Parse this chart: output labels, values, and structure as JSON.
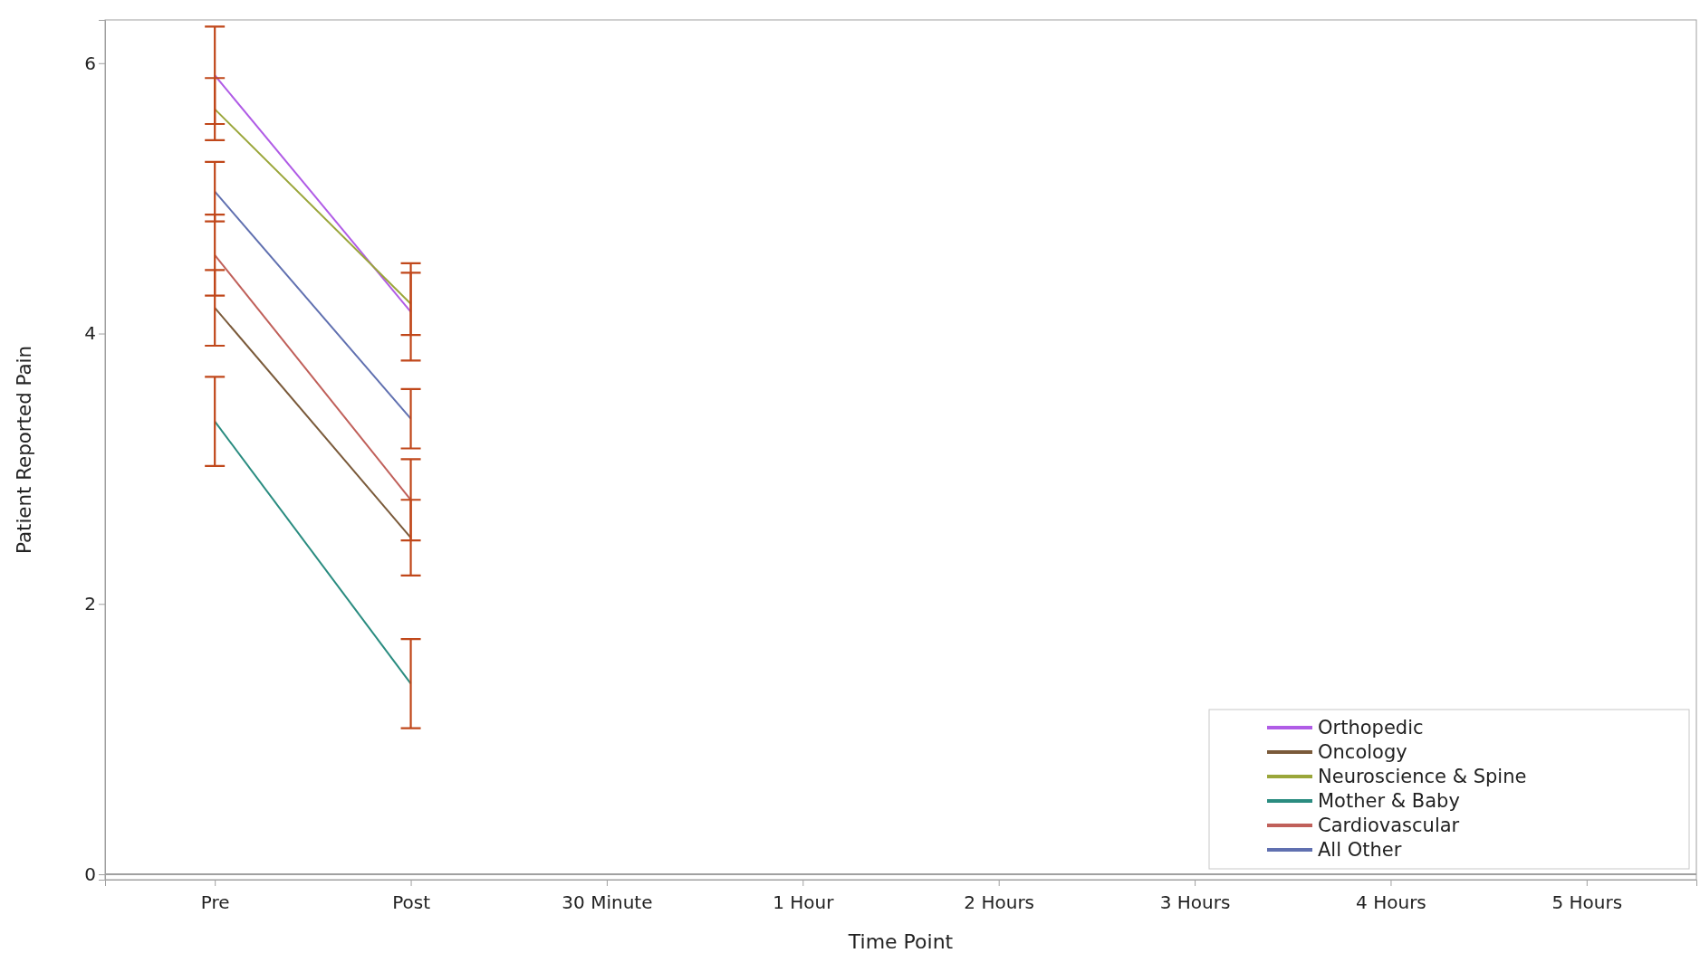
{
  "chart_data": {
    "type": "line",
    "xlabel": "Time Point",
    "ylabel": "Patient Reported Pain",
    "categories": [
      "Pre",
      "Post",
      "30 Minute",
      "1 Hour",
      "2 Hours",
      "3 Hours",
      "4 Hours",
      "5 Hours"
    ],
    "ylim": [
      -0.04,
      6.32
    ],
    "yticks": [
      0,
      2,
      4,
      6
    ],
    "grid": false,
    "legend": "bottom right",
    "marker": "none",
    "line_style": "solid",
    "ref_lines": [
      {
        "axis": "y",
        "value": 0,
        "color": "#a0a0a0"
      }
    ],
    "series": [
      {
        "name": "Orthopedic",
        "color": "#b05ce6",
        "values": [
          5.91,
          4.16,
          null,
          null,
          null,
          null,
          null,
          null
        ],
        "errors": [
          0.36,
          0.36,
          null,
          null,
          null,
          null,
          null,
          null
        ]
      },
      {
        "name": "Oncology",
        "color": "#7a5a3a",
        "values": [
          4.19,
          2.49,
          null,
          null,
          null,
          null,
          null,
          null
        ],
        "errors": [
          0.28,
          0.28,
          null,
          null,
          null,
          null,
          null,
          null
        ]
      },
      {
        "name": "Neuroscience & Spine",
        "color": "#9aa63a",
        "values": [
          5.66,
          4.22,
          null,
          null,
          null,
          null,
          null,
          null
        ],
        "errors": [
          0.23,
          0.23,
          null,
          null,
          null,
          null,
          null,
          null
        ]
      },
      {
        "name": "Mother & Baby",
        "color": "#2a8c80",
        "values": [
          3.35,
          1.41,
          null,
          null,
          null,
          null,
          null,
          null
        ],
        "errors": [
          0.33,
          0.33,
          null,
          null,
          null,
          null,
          null,
          null
        ]
      },
      {
        "name": "Cardiovascular",
        "color": "#c0605a",
        "values": [
          4.58,
          2.77,
          null,
          null,
          null,
          null,
          null,
          null
        ],
        "errors": [
          0.3,
          0.3,
          null,
          null,
          null,
          null,
          null,
          null
        ]
      },
      {
        "name": "All Other",
        "color": "#6070b0",
        "values": [
          5.05,
          3.37,
          null,
          null,
          null,
          null,
          null,
          null
        ],
        "errors": [
          0.22,
          0.22,
          null,
          null,
          null,
          null,
          null,
          null
        ]
      }
    ]
  }
}
